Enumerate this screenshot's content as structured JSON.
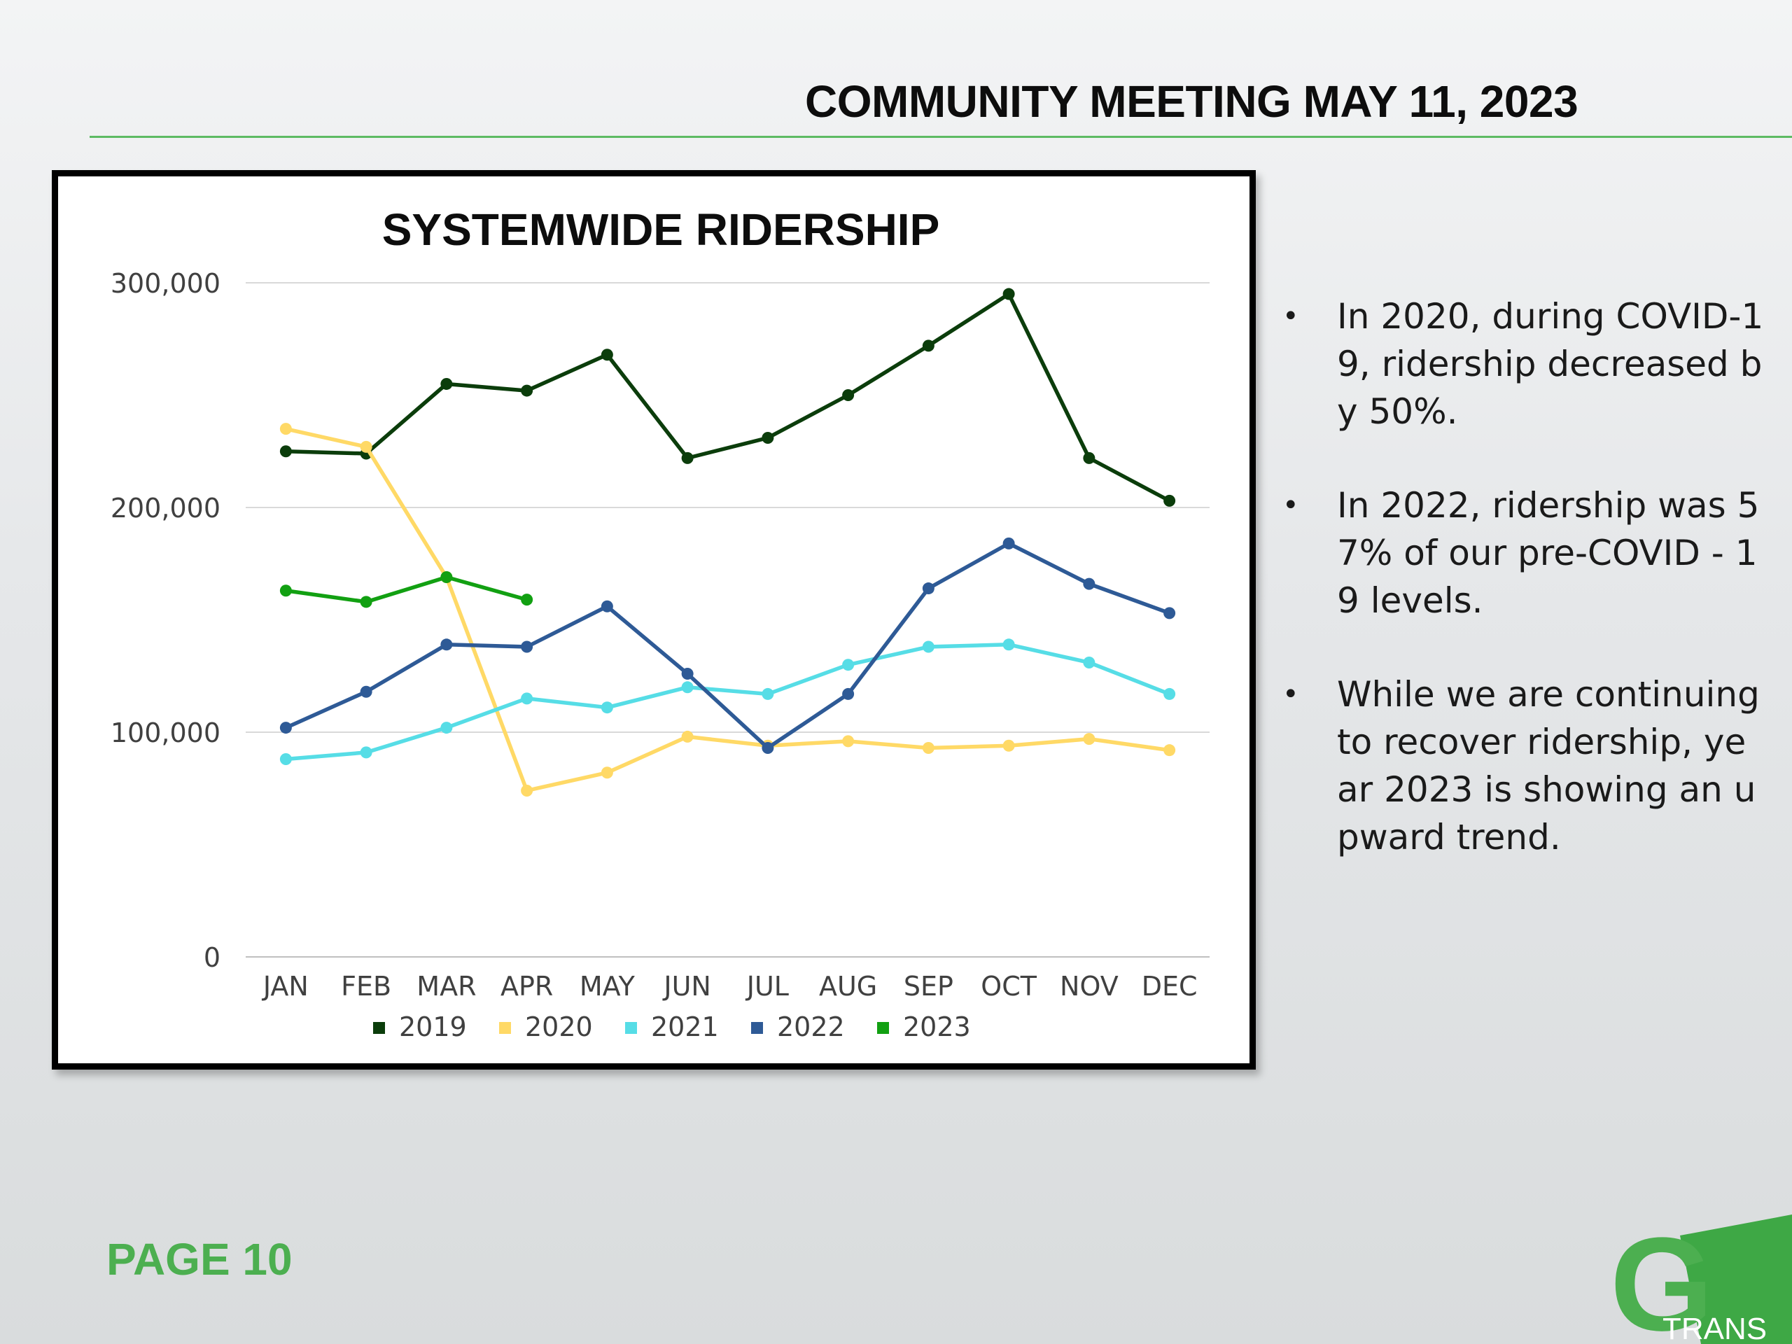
{
  "header": {
    "title": "COMMUNITY MEETING MAY 11, 2023"
  },
  "footer": {
    "page_label": "PAGE 10",
    "logo_text": "TRANS",
    "logo_letter": "G"
  },
  "bullets": [
    "In 2020, during COVID-19, ridership decreased by 50%.",
    "In 2022, ridership was 57% of our pre-COVID - 19 levels.",
    "While we are continuing to recover ridership, year 2023 is showing an upward trend."
  ],
  "colors": {
    "accent_green": "#5dbb63",
    "page_label_green": "#4caf50"
  },
  "chart_data": {
    "type": "line",
    "title": "SYSTEMWIDE RIDERSHIP",
    "xlabel": "",
    "ylabel": "",
    "ylim": [
      0,
      300000
    ],
    "yticks": [
      0,
      100000,
      200000,
      300000
    ],
    "ytick_labels": [
      "0",
      "100,000",
      "200,000",
      "300,000"
    ],
    "grid": true,
    "legend_position": "bottom",
    "categories": [
      "JAN",
      "FEB",
      "MAR",
      "APR",
      "MAY",
      "JUN",
      "JUL",
      "AUG",
      "SEP",
      "OCT",
      "NOV",
      "DEC"
    ],
    "series": [
      {
        "name": "2019",
        "color": "#0b3d0b",
        "values": [
          225000,
          224000,
          255000,
          252000,
          268000,
          222000,
          231000,
          250000,
          272000,
          295000,
          222000,
          203000
        ]
      },
      {
        "name": "2020",
        "color": "#ffd966",
        "values": [
          235000,
          227000,
          169000,
          74000,
          82000,
          98000,
          94000,
          96000,
          93000,
          94000,
          97000,
          92000
        ]
      },
      {
        "name": "2021",
        "color": "#56dde6",
        "values": [
          88000,
          91000,
          102000,
          115000,
          111000,
          120000,
          117000,
          130000,
          138000,
          139000,
          131000,
          117000
        ]
      },
      {
        "name": "2022",
        "color": "#2e5a96",
        "values": [
          102000,
          118000,
          139000,
          138000,
          156000,
          126000,
          93000,
          117000,
          164000,
          184000,
          166000,
          153000
        ]
      },
      {
        "name": "2023",
        "color": "#12a012",
        "values": [
          163000,
          158000,
          169000,
          159000,
          null,
          null,
          null,
          null,
          null,
          null,
          null,
          null
        ]
      }
    ]
  }
}
